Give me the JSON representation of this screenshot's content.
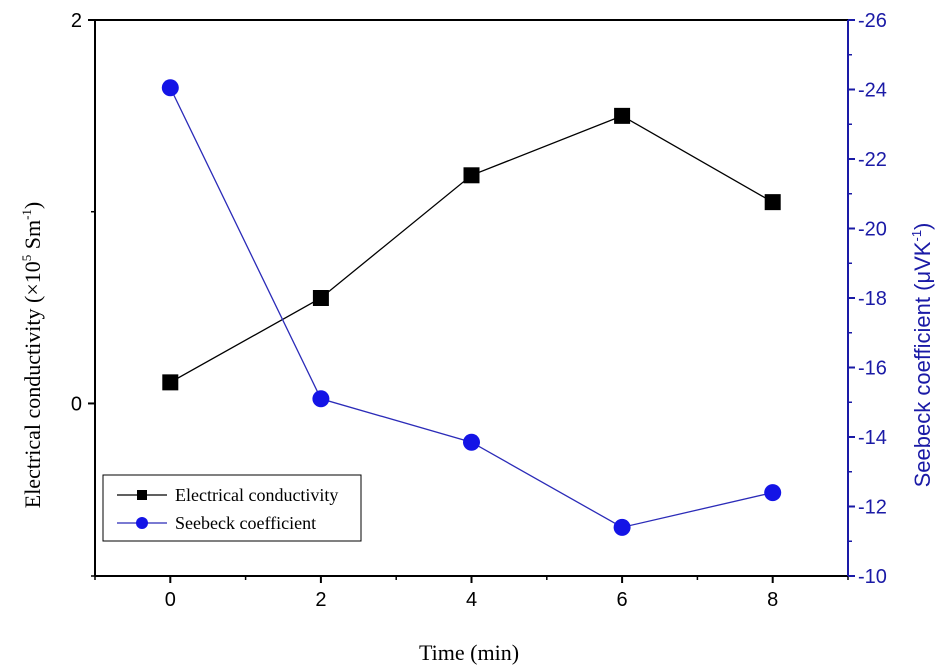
{
  "chart_data": {
    "type": "line",
    "xlabel": "Time (min)",
    "ylabel_left": "Electrical conductivity (×10",
    "ylabel_left_exp": "5",
    "ylabel_left_unit": " Sm",
    "ylabel_left_unit_exp": "-1",
    "ylabel_left_close": ")",
    "ylabel_right": "Seebeck coefficient (μVK",
    "ylabel_right_exp": "-1",
    "ylabel_right_close": ")",
    "xlim": [
      -1,
      9
    ],
    "x_ticks": [
      0,
      2,
      4,
      6,
      8
    ],
    "x_tick_labels": [
      "0",
      "2",
      "4",
      "6",
      "8"
    ],
    "ylim_left": [
      -0.9,
      2
    ],
    "y_left_ticks": [
      0,
      2
    ],
    "y_left_tick_labels": [
      "0",
      "2"
    ],
    "y_left_minor_ticks": [
      -1,
      1
    ],
    "ylim_right": [
      -10,
      -26
    ],
    "y_right_ticks": [
      -10,
      -12,
      -14,
      -16,
      -18,
      -20,
      -22,
      -24,
      -26
    ],
    "y_right_tick_labels": [
      "-10",
      "-12",
      "-14",
      "-16",
      "-18",
      "-20",
      "-22",
      "-24",
      "-26"
    ],
    "right_axis_color": "#1a1aa6",
    "series": [
      {
        "name": "Electrical conductivity",
        "axis": "left",
        "marker": "square",
        "color": "#000000",
        "x": [
          0,
          2,
          4,
          6,
          8
        ],
        "y": [
          0.11,
          0.55,
          1.19,
          1.5,
          1.05
        ]
      },
      {
        "name": "Seebeck coefficient",
        "axis": "right",
        "marker": "circle",
        "color": "#1414e6",
        "line_color": "#2b2bb8",
        "x": [
          0,
          2,
          4,
          6,
          8
        ],
        "y": [
          -24.05,
          -15.1,
          -13.85,
          -11.4,
          -12.4
        ]
      }
    ],
    "legend": {
      "position": "bottom-left"
    },
    "grid": false
  }
}
